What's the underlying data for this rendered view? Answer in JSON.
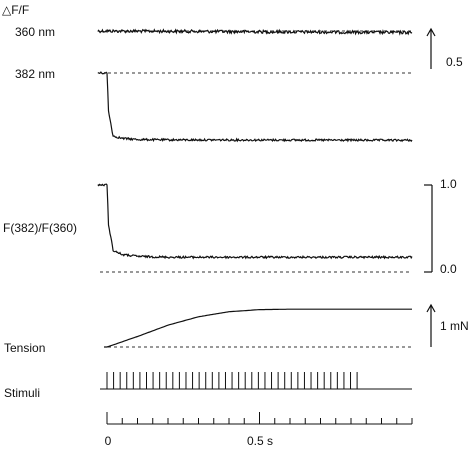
{
  "chart_data": {
    "type": "line",
    "ylabel": "△F/F",
    "time_axis": {
      "ticks": [
        "0",
        "0.5 s"
      ],
      "tick_values": [
        0,
        0.5
      ],
      "range": [
        0,
        1.0
      ],
      "minor_tick_step": 0.05
    },
    "scale_bars": [
      {
        "label": "0.5",
        "arrow": true
      },
      {
        "tick_top": "1.0",
        "tick_bottom": "0.0"
      },
      {
        "label": "1 mN",
        "arrow": true
      }
    ],
    "traces": [
      {
        "name": "360 nm",
        "description": "flat noisy fluorescence trace",
        "baseline_dashed": true,
        "t": [
          -0.03,
          0,
          1.0
        ],
        "y": [
          0.0,
          0.0,
          -0.02
        ]
      },
      {
        "name": "382 nm",
        "description": "drops sharply after stimulation onset",
        "baseline_dashed": true,
        "t": [
          -0.03,
          0,
          0.005,
          0.02,
          0.05,
          0.1,
          0.2,
          1.0
        ],
        "y": [
          0.0,
          0.0,
          -0.5,
          -0.83,
          -0.86,
          -0.875,
          -0.88,
          -0.885
        ]
      },
      {
        "name": "F(382)/F(360)",
        "description": "ratio drops from 1.0 to about 0.2",
        "t": [
          -0.03,
          0,
          0.005,
          0.02,
          0.05,
          0.1,
          0.2,
          1.0
        ],
        "y": [
          1.0,
          1.0,
          0.55,
          0.25,
          0.2,
          0.18,
          0.17,
          0.17
        ]
      },
      {
        "name": "Tension",
        "description": "rises smoothly and plateaus near 0.9 mN",
        "t": [
          -0.01,
          0,
          0.1,
          0.2,
          0.3,
          0.4,
          0.5,
          0.6,
          0.7,
          0.8,
          0.9,
          1.0
        ],
        "y": [
          0.0,
          0.0,
          0.25,
          0.52,
          0.72,
          0.84,
          0.89,
          0.9,
          0.9,
          0.9,
          0.9,
          0.9
        ]
      },
      {
        "name": "Stimuli",
        "description": "train of pulses",
        "pulse_start": 0.0,
        "pulse_end": 0.82,
        "pulse_count": 39
      }
    ]
  }
}
